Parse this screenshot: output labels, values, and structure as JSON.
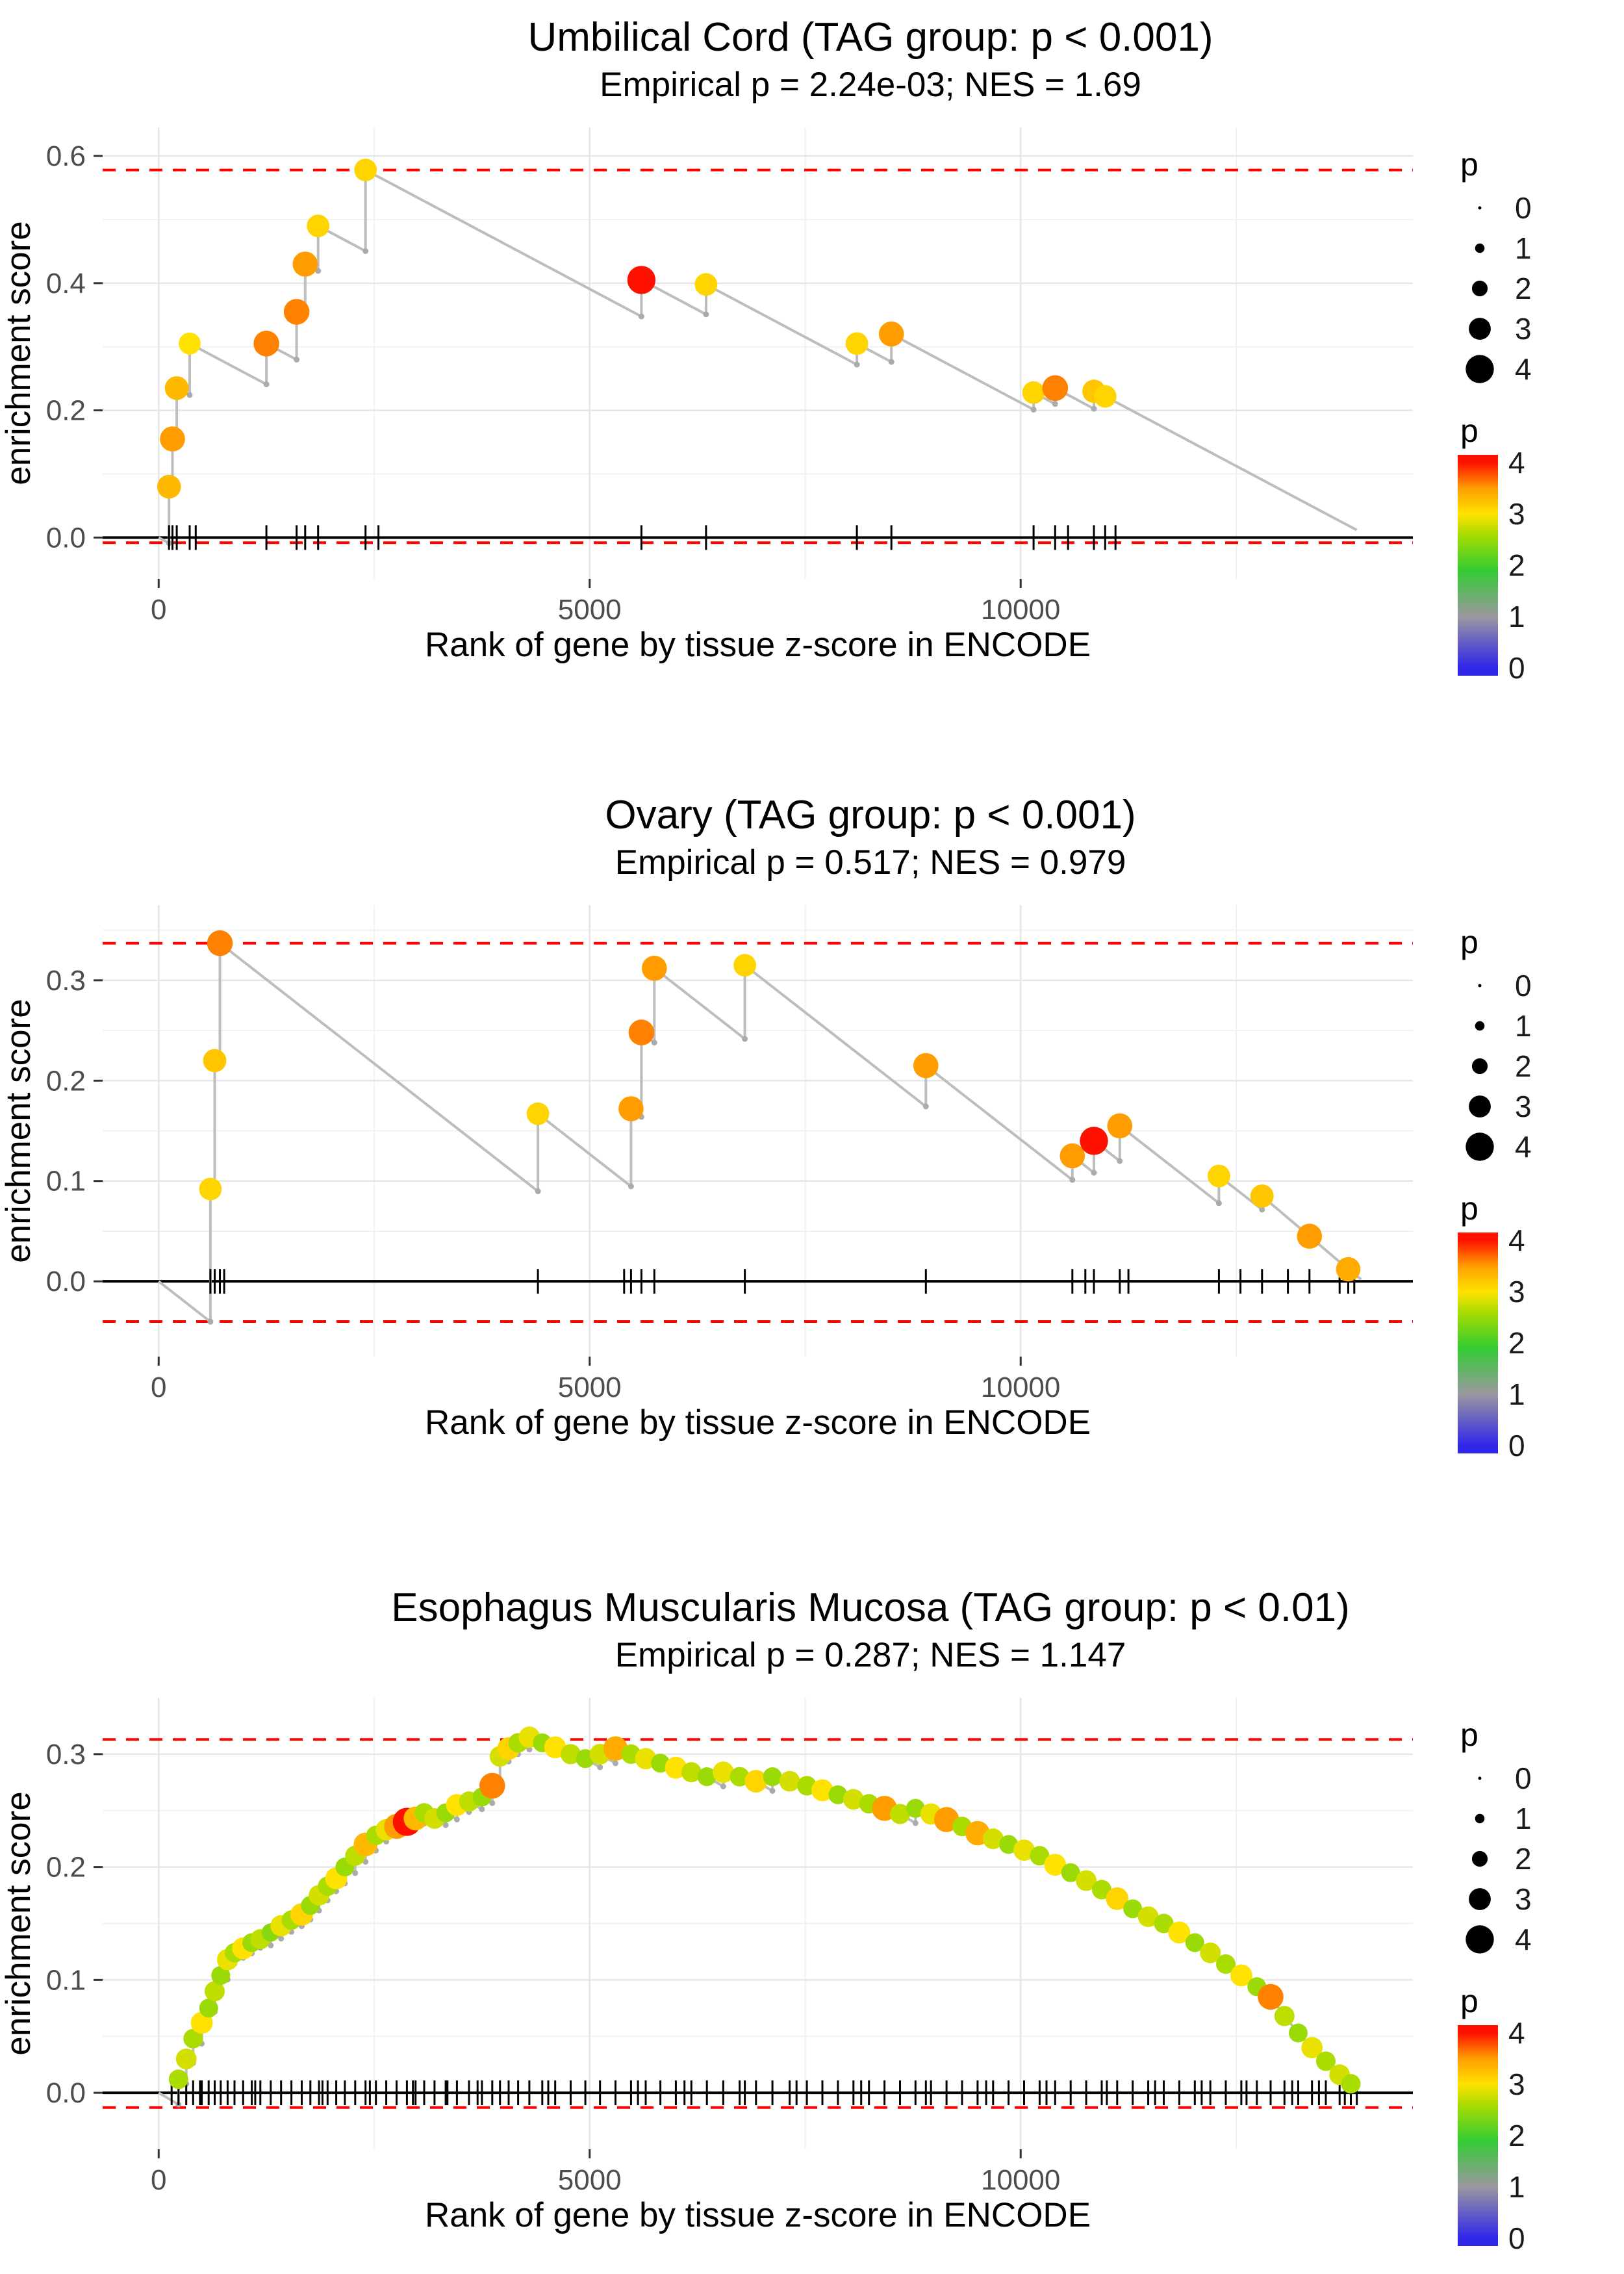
{
  "colors": {
    "line": "#BDBDBD",
    "valley_dot": "#ABABAB",
    "dashed_threshold": "#FF0000",
    "zero_line": "#000000",
    "grid_major": "#E6E6E6",
    "grid_minor": "#F2F2F2",
    "tick_text": "#4D4D4D",
    "axis_title": "#000000",
    "legend_dot": "#000000"
  },
  "size_scale": {
    "base": 2.5,
    "per_p": 4.8
  },
  "color_scale": {
    "bar_domain": [
      -0.15,
      4.15
    ],
    "stops": [
      {
        "p": 0.0,
        "c": "#2F26E8"
      },
      {
        "p": 1.0,
        "c": "#9B97A0"
      },
      {
        "p": 1.9,
        "c": "#33CC33"
      },
      {
        "p": 2.6,
        "c": "#AADC00"
      },
      {
        "p": 3.0,
        "c": "#FFE200"
      },
      {
        "p": 3.5,
        "c": "#FF9D00"
      },
      {
        "p": 4.0,
        "c": "#FF1100"
      }
    ]
  },
  "legend": {
    "size_title": "p",
    "size_values": [
      0,
      1,
      2,
      3,
      4
    ],
    "color_title": "p",
    "colorbar_ticks": [
      4,
      3,
      2,
      1,
      0
    ]
  },
  "chart_data": [
    {
      "type": "line",
      "title": "Umbilical Cord (TAG group: p < 0.001)",
      "subtitle": "Empirical p = 2.24e-03; NES = 1.69",
      "empirical_p": "2.24e-03",
      "nes": 1.69,
      "xlabel": "Rank of gene by tissue z-score in ENCODE",
      "ylabel": "enrichment score",
      "x_domain": [
        -650,
        14550
      ],
      "y_domain": [
        -0.065,
        0.645
      ],
      "x_ticks": [
        0,
        5000,
        10000
      ],
      "x_tick_labels": [
        "0",
        "5000",
        "10000"
      ],
      "x_minor": [
        2500,
        7500,
        12500
      ],
      "y_ticks": [
        0.0,
        0.2,
        0.4,
        0.6
      ],
      "y_tick_labels": [
        "0.0",
        "0.2",
        "0.4",
        "0.6"
      ],
      "y_minor": [
        0.1,
        0.3,
        0.5
      ],
      "hline_upper": 0.578,
      "hline_lower": -0.008,
      "miss_slope": 7.2e-05,
      "x_end": 13900,
      "point_format": [
        "x",
        "es",
        "p"
      ],
      "points": [
        [
          120,
          0.08,
          3.3
        ],
        [
          160,
          0.155,
          3.5
        ],
        [
          210,
          0.235,
          3.3
        ],
        [
          360,
          0.305,
          3.0
        ],
        [
          1250,
          0.305,
          3.6
        ],
        [
          1600,
          0.355,
          3.6
        ],
        [
          1700,
          0.43,
          3.5
        ],
        [
          1850,
          0.49,
          3.1
        ],
        [
          2400,
          0.578,
          3.1
        ],
        [
          5600,
          0.405,
          4.0
        ],
        [
          6350,
          0.398,
          3.1
        ],
        [
          8100,
          0.305,
          3.1
        ],
        [
          8500,
          0.32,
          3.5
        ],
        [
          10150,
          0.228,
          3.1
        ],
        [
          10400,
          0.235,
          3.6
        ],
        [
          10850,
          0.23,
          3.2
        ],
        [
          10980,
          0.222,
          3.1
        ]
      ],
      "rug": [
        120,
        160,
        210,
        360,
        430,
        1250,
        1600,
        1700,
        1850,
        2400,
        2550,
        5600,
        6350,
        8100,
        8500,
        10150,
        10400,
        10550,
        10850,
        10980,
        11100
      ]
    },
    {
      "type": "line",
      "title": "Ovary (TAG group: p < 0.001)",
      "subtitle": "Empirical p = 0.517; NES = 0.979",
      "empirical_p": "0.517",
      "nes": 0.979,
      "xlabel": "Rank of gene by tissue z-score in ENCODE",
      "ylabel": "enrichment score",
      "x_domain": [
        -650,
        14550
      ],
      "y_domain": [
        -0.075,
        0.375
      ],
      "x_ticks": [
        0,
        5000,
        10000
      ],
      "x_tick_labels": [
        "0",
        "5000",
        "10000"
      ],
      "x_minor": [
        2500,
        7500,
        12500
      ],
      "y_ticks": [
        0.0,
        0.1,
        0.2,
        0.3
      ],
      "y_tick_labels": [
        "0.0",
        "0.1",
        "0.2",
        "0.3"
      ],
      "y_minor": [
        0.05,
        0.15,
        0.25,
        0.35
      ],
      "hline_upper": 0.337,
      "hline_lower": -0.04,
      "miss_slope": 6.7e-05,
      "x_end": 13950,
      "point_format": [
        "x",
        "es",
        "p"
      ],
      "points": [
        [
          600,
          0.092,
          3.1
        ],
        [
          650,
          0.22,
          3.2
        ],
        [
          710,
          0.337,
          3.6
        ],
        [
          4400,
          0.167,
          3.1
        ],
        [
          5480,
          0.172,
          3.5
        ],
        [
          5600,
          0.248,
          3.6
        ],
        [
          5750,
          0.312,
          3.5
        ],
        [
          6800,
          0.315,
          3.1
        ],
        [
          8900,
          0.215,
          3.5
        ],
        [
          10600,
          0.125,
          3.5
        ],
        [
          10850,
          0.14,
          4.0
        ],
        [
          11150,
          0.155,
          3.5
        ],
        [
          12300,
          0.105,
          3.1
        ],
        [
          12800,
          0.085,
          3.2
        ],
        [
          13350,
          0.045,
          3.5
        ],
        [
          13800,
          0.012,
          3.4
        ]
      ],
      "rug": [
        600,
        650,
        710,
        760,
        4400,
        5400,
        5480,
        5600,
        5750,
        6800,
        8900,
        10600,
        10750,
        10850,
        11150,
        11250,
        12300,
        12550,
        12800,
        13100,
        13350,
        13700,
        13800,
        13870
      ]
    },
    {
      "type": "line",
      "title": "Esophagus Muscularis Mucosa (TAG group: p < 0.01)",
      "subtitle": "Empirical p = 0.287; NES = 1.147",
      "empirical_p": "0.287",
      "nes": 1.147,
      "xlabel": "Rank of gene by tissue z-score in ENCODE",
      "ylabel": "enrichment score",
      "x_domain": [
        -650,
        14550
      ],
      "y_domain": [
        -0.05,
        0.35
      ],
      "x_ticks": [
        0,
        5000,
        10000
      ],
      "x_tick_labels": [
        "0",
        "5000",
        "10000"
      ],
      "x_minor": [
        2500,
        7500,
        12500
      ],
      "y_ticks": [
        0.0,
        0.1,
        0.2,
        0.3
      ],
      "y_tick_labels": [
        "0.0",
        "0.1",
        "0.2",
        "0.3"
      ],
      "y_minor": [
        0.05,
        0.15,
        0.25
      ],
      "hline_upper": 0.313,
      "hline_lower": -0.013,
      "miss_slope": 4.5e-05,
      "x_end": 13900,
      "point_format": [
        "x",
        "es",
        "p"
      ],
      "points": [
        [
          230,
          0.012,
          2.6
        ],
        [
          320,
          0.03,
          2.8
        ],
        [
          400,
          0.048,
          2.6
        ],
        [
          500,
          0.062,
          3.0
        ],
        [
          580,
          0.075,
          2.5
        ],
        [
          650,
          0.09,
          2.7
        ],
        [
          720,
          0.104,
          2.5
        ],
        [
          800,
          0.118,
          2.9
        ],
        [
          880,
          0.124,
          2.6
        ],
        [
          980,
          0.128,
          3.0
        ],
        [
          1080,
          0.133,
          2.5
        ],
        [
          1180,
          0.136,
          2.7
        ],
        [
          1300,
          0.142,
          2.4
        ],
        [
          1420,
          0.148,
          2.9
        ],
        [
          1540,
          0.153,
          2.6
        ],
        [
          1660,
          0.158,
          3.1
        ],
        [
          1760,
          0.166,
          2.5
        ],
        [
          1860,
          0.175,
          2.8
        ],
        [
          1960,
          0.183,
          2.6
        ],
        [
          2060,
          0.19,
          3.0
        ],
        [
          2160,
          0.2,
          2.5
        ],
        [
          2280,
          0.21,
          2.7
        ],
        [
          2400,
          0.22,
          3.3
        ],
        [
          2520,
          0.228,
          2.6
        ],
        [
          2640,
          0.233,
          2.9
        ],
        [
          2760,
          0.236,
          3.5
        ],
        [
          2880,
          0.24,
          4.0
        ],
        [
          2980,
          0.243,
          3.3
        ],
        [
          3080,
          0.248,
          2.6
        ],
        [
          3200,
          0.243,
          2.8
        ],
        [
          3330,
          0.248,
          2.5
        ],
        [
          3460,
          0.255,
          3.0
        ],
        [
          3600,
          0.258,
          2.7
        ],
        [
          3750,
          0.262,
          2.5
        ],
        [
          3870,
          0.272,
          3.6
        ],
        [
          3960,
          0.298,
          2.8
        ],
        [
          4060,
          0.305,
          3.1
        ],
        [
          4170,
          0.31,
          2.6
        ],
        [
          4300,
          0.315,
          2.9
        ],
        [
          4450,
          0.31,
          2.5
        ],
        [
          4600,
          0.306,
          3.0
        ],
        [
          4780,
          0.3,
          2.7
        ],
        [
          4950,
          0.296,
          2.5
        ],
        [
          5120,
          0.3,
          2.8
        ],
        [
          5300,
          0.305,
          3.4
        ],
        [
          5480,
          0.3,
          2.6
        ],
        [
          5650,
          0.296,
          2.9
        ],
        [
          5820,
          0.292,
          2.5
        ],
        [
          6000,
          0.288,
          3.0
        ],
        [
          6180,
          0.284,
          2.7
        ],
        [
          6360,
          0.28,
          2.5
        ],
        [
          6550,
          0.284,
          2.9
        ],
        [
          6740,
          0.28,
          2.6
        ],
        [
          6930,
          0.276,
          3.1
        ],
        [
          7120,
          0.28,
          2.5
        ],
        [
          7320,
          0.276,
          2.8
        ],
        [
          7520,
          0.272,
          2.6
        ],
        [
          7700,
          0.268,
          3.0
        ],
        [
          7880,
          0.264,
          2.5
        ],
        [
          8060,
          0.26,
          2.8
        ],
        [
          8240,
          0.256,
          2.6
        ],
        [
          8420,
          0.252,
          3.5
        ],
        [
          8600,
          0.247,
          2.7
        ],
        [
          8780,
          0.252,
          2.5
        ],
        [
          8960,
          0.247,
          2.9
        ],
        [
          9140,
          0.242,
          3.5
        ],
        [
          9320,
          0.236,
          2.6
        ],
        [
          9500,
          0.23,
          3.4
        ],
        [
          9680,
          0.225,
          2.8
        ],
        [
          9860,
          0.22,
          2.5
        ],
        [
          10040,
          0.215,
          2.9
        ],
        [
          10220,
          0.21,
          2.6
        ],
        [
          10400,
          0.202,
          3.0
        ],
        [
          10580,
          0.195,
          2.5
        ],
        [
          10760,
          0.188,
          2.8
        ],
        [
          10940,
          0.18,
          2.6
        ],
        [
          11120,
          0.172,
          3.1
        ],
        [
          11300,
          0.163,
          2.5
        ],
        [
          11480,
          0.156,
          2.8
        ],
        [
          11660,
          0.15,
          2.6
        ],
        [
          11840,
          0.142,
          3.0
        ],
        [
          12020,
          0.133,
          2.5
        ],
        [
          12200,
          0.124,
          2.8
        ],
        [
          12380,
          0.114,
          2.6
        ],
        [
          12560,
          0.104,
          3.0
        ],
        [
          12740,
          0.094,
          2.5
        ],
        [
          12900,
          0.085,
          3.6
        ],
        [
          13060,
          0.068,
          2.7
        ],
        [
          13220,
          0.053,
          2.5
        ],
        [
          13380,
          0.04,
          2.9
        ],
        [
          13540,
          0.028,
          2.6
        ],
        [
          13700,
          0.016,
          2.8
        ],
        [
          13830,
          0.008,
          2.6
        ]
      ],
      "rug": [
        230,
        320,
        400,
        500,
        580,
        650,
        720,
        800,
        880,
        980,
        1080,
        1180,
        1300,
        1420,
        1540,
        1660,
        1760,
        1860,
        1960,
        2060,
        2160,
        2280,
        2400,
        2520,
        2640,
        2760,
        2880,
        2980,
        3080,
        3200,
        3330,
        3460,
        3600,
        3750,
        3870,
        3960,
        4060,
        4170,
        4300,
        4450,
        4600,
        4780,
        4950,
        5120,
        5300,
        5480,
        5650,
        5820,
        6000,
        6180,
        6360,
        6550,
        6740,
        6930,
        7120,
        7320,
        7520,
        7700,
        7880,
        8060,
        8240,
        8420,
        8600,
        8780,
        8960,
        9140,
        9320,
        9500,
        9680,
        9860,
        10040,
        10220,
        10400,
        10580,
        10760,
        10940,
        11120,
        11300,
        11480,
        11660,
        11840,
        12020,
        12200,
        12380,
        12560,
        12740,
        12900,
        13060,
        13220,
        13380,
        13540,
        13700,
        13830,
        150,
        480,
        1120,
        1900,
        2450,
        2950,
        3350,
        3700,
        4520,
        5560,
        6100,
        6800,
        7400,
        8150,
        8900,
        9600,
        10300,
        11000,
        11560,
        12100,
        12620,
        13150,
        13460,
        13760,
        13900
      ]
    }
  ]
}
